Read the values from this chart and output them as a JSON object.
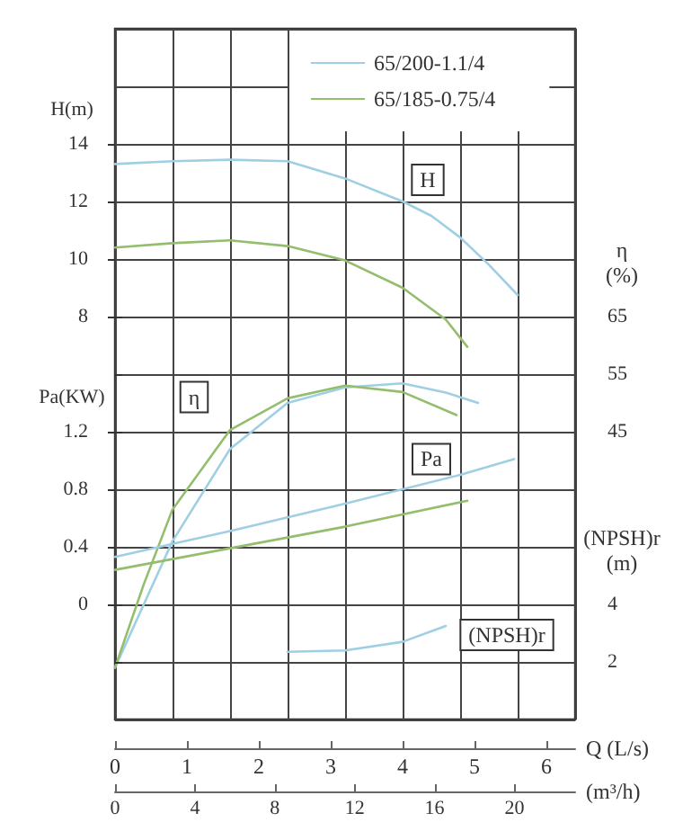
{
  "chart_data": [
    {
      "type": "line",
      "marker": "none",
      "line_style": "solid",
      "grid": true,
      "legend": "top right",
      "xlabel": "Q (L/s)",
      "xlim": [
        0,
        6.4
      ],
      "xticks": [
        0,
        1,
        2,
        3,
        4,
        5,
        6
      ],
      "x2label": "(m³/h)",
      "x2lim": [
        0,
        23.04
      ],
      "x2ticks": [
        0,
        4,
        8,
        12,
        16,
        20
      ],
      "ylabel": "H(m)",
      "ylim": [
        -6,
        18
      ],
      "yticks": [
        8,
        10,
        12,
        14
      ],
      "y2label": "η (%)",
      "y2lim": [
        -5,
        115
      ],
      "y2ticks": [
        45,
        55,
        65
      ],
      "y3label": "Pa(KW)",
      "y3lim": [
        -0.8,
        4.0
      ],
      "y3ticks": [
        0,
        0.4,
        0.8,
        1.2
      ],
      "annotations": [
        {
          "text": "H",
          "x": 4.35,
          "y": 12.75
        },
        {
          "text": "η",
          "x": 1.1,
          "y": 5.2
        },
        {
          "text": "Pa",
          "x": 4.4,
          "y": 3.05
        }
      ],
      "series": [
        {
          "name": "65/200-1.1/4",
          "color": "#9fcfe3",
          "axis": "y",
          "x": [
            0,
            0.8,
            1.6,
            2.4,
            3.2,
            4,
            4.4,
            4.8,
            5.2,
            5.6
          ],
          "values": [
            13.3,
            13.4,
            13.45,
            13.4,
            12.8,
            12.0,
            11.5,
            10.75,
            9.8,
            8.75
          ]
        },
        {
          "name": "65/185-0.75/4",
          "color": "#94bd6e",
          "axis": "y",
          "x": [
            0,
            0.8,
            1.6,
            2.4,
            3.2,
            4,
            4.6,
            4.9
          ],
          "values": [
            10.4,
            10.55,
            10.65,
            10.45,
            9.95,
            9.0,
            7.9,
            6.95
          ]
        },
        {
          "color": "#9fcfe3",
          "axis": "y2",
          "x": [
            0,
            0.4,
            0.8,
            1.6,
            2.4,
            3.2,
            4,
            4.6,
            5.05
          ],
          "values": [
            4,
            15,
            26,
            42,
            50,
            52.7,
            53.4,
            51.8,
            50
          ]
        },
        {
          "color": "#94bd6e",
          "axis": "y2",
          "x": [
            0,
            0.4,
            0.8,
            1.6,
            2.4,
            3.2,
            4,
            4.75
          ],
          "values": [
            4,
            18.5,
            31.5,
            45.3,
            50.8,
            53,
            51.9,
            47.9
          ]
        },
        {
          "color": "#9fcfe3",
          "axis": "y3",
          "x": [
            0,
            0.8,
            1.6,
            3.2,
            4.8,
            5.55
          ],
          "values": [
            0.33,
            0.42,
            0.51,
            0.7,
            0.9,
            1.01
          ]
        },
        {
          "color": "#94bd6e",
          "axis": "y3",
          "x": [
            0,
            1.6,
            3.2,
            4.9
          ],
          "values": [
            0.24,
            0.39,
            0.54,
            0.72
          ]
        }
      ]
    },
    {
      "type": "line",
      "marker": "none",
      "tick_labels": "y",
      "xlim": [
        0,
        6.4
      ],
      "y2label": "(NPSH)r (m)",
      "y2lim": [
        0,
        24
      ],
      "y2ticks": [
        2,
        4
      ],
      "annotations": [
        "(NPSH)r"
      ],
      "series": [
        {
          "color": "#9fcfe3",
          "axis": "y2",
          "x": [
            2.4,
            3.2,
            4,
            4.6
          ],
          "values": [
            2.35,
            2.4,
            2.7,
            3.25
          ]
        }
      ]
    }
  ]
}
